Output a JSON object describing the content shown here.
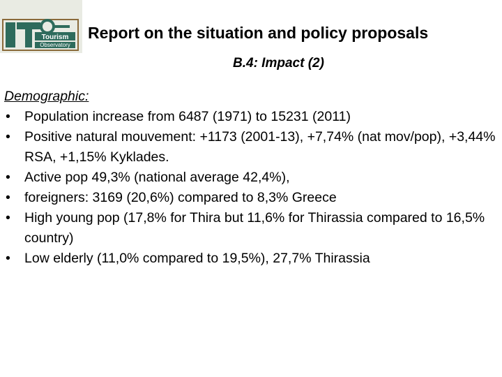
{
  "logo": {
    "brand_text": "Tourism Observatory",
    "colors": {
      "box": "#2e6b5c",
      "frame": "#8a6a3a",
      "background": "#e9ebe3"
    }
  },
  "header": {
    "title": "Report on the situation and policy proposals",
    "subtitle": "B.4: Impact (2)"
  },
  "section": {
    "heading": "Demographic:",
    "bullets": [
      "Population increase from 6487 (1971) to 15231 (2011)",
      "Positive natural mouvement: +1173 (2001-13), +7,74% (nat mov/pop), +3,44% RSA, +1,15% Kyklades.",
      "Active pop 49,3% (national average 42,4%),",
      "foreigners: 3169 (20,6%) compared to 8,3% Greece",
      "High young pop (17,8% for Thira but 11,6% for Thirassia compared to 16,5% country)",
      "Low elderly (11,0% compared to 19,5%), 27,7% Thirassia"
    ],
    "bullet_glyph": "•"
  }
}
